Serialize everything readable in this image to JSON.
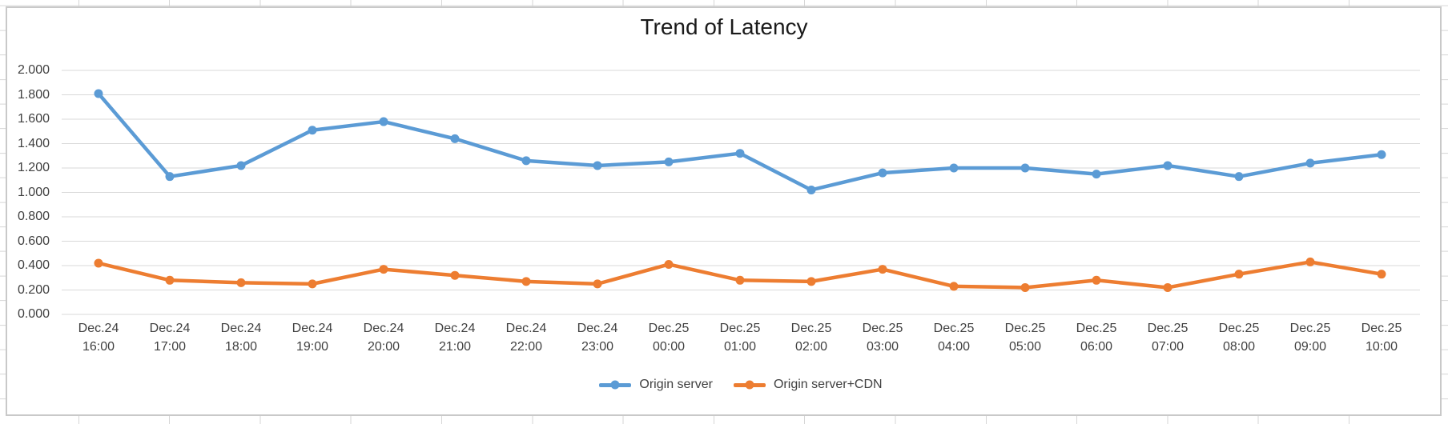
{
  "chart_data": {
    "type": "line",
    "title": "Trend of Latency",
    "categories": [
      [
        "Dec.24",
        "16:00"
      ],
      [
        "Dec.24",
        "17:00"
      ],
      [
        "Dec.24",
        "18:00"
      ],
      [
        "Dec.24",
        "19:00"
      ],
      [
        "Dec.24",
        "20:00"
      ],
      [
        "Dec.24",
        "21:00"
      ],
      [
        "Dec.24",
        "22:00"
      ],
      [
        "Dec.24",
        "23:00"
      ],
      [
        "Dec.25",
        "00:00"
      ],
      [
        "Dec.25",
        "01:00"
      ],
      [
        "Dec.25",
        "02:00"
      ],
      [
        "Dec.25",
        "03:00"
      ],
      [
        "Dec.25",
        "04:00"
      ],
      [
        "Dec.25",
        "05:00"
      ],
      [
        "Dec.25",
        "06:00"
      ],
      [
        "Dec.25",
        "07:00"
      ],
      [
        "Dec.25",
        "08:00"
      ],
      [
        "Dec.25",
        "09:00"
      ],
      [
        "Dec.25",
        "10:00"
      ]
    ],
    "series": [
      {
        "name": "Origin server",
        "color": "#5B9BD5",
        "values": [
          1.81,
          1.13,
          1.22,
          1.51,
          1.58,
          1.44,
          1.26,
          1.22,
          1.25,
          1.32,
          1.02,
          1.16,
          1.2,
          1.2,
          1.15,
          1.22,
          1.13,
          1.24,
          1.31
        ]
      },
      {
        "name": "Origin server+CDN",
        "color": "#ED7D31",
        "values": [
          0.42,
          0.28,
          0.26,
          0.25,
          0.37,
          0.32,
          0.27,
          0.25,
          0.41,
          0.28,
          0.27,
          0.37,
          0.23,
          0.22,
          0.28,
          0.22,
          0.33,
          0.43,
          0.33
        ]
      }
    ],
    "y_axis": {
      "min": 0,
      "max": 2,
      "step": 0.2,
      "tick_labels": [
        "0.000",
        "0.200",
        "0.400",
        "0.600",
        "0.800",
        "1.000",
        "1.200",
        "1.400",
        "1.600",
        "1.800",
        "2.000"
      ]
    },
    "grid": "horizontal",
    "legend_position": "bottom"
  },
  "colors": {
    "gridline": "#D9D9D9",
    "axis_text": "#404040",
    "title_text": "#1A1A1A",
    "chart_border": "#C9C9C9",
    "sheet_line": "#D6D6D6"
  }
}
